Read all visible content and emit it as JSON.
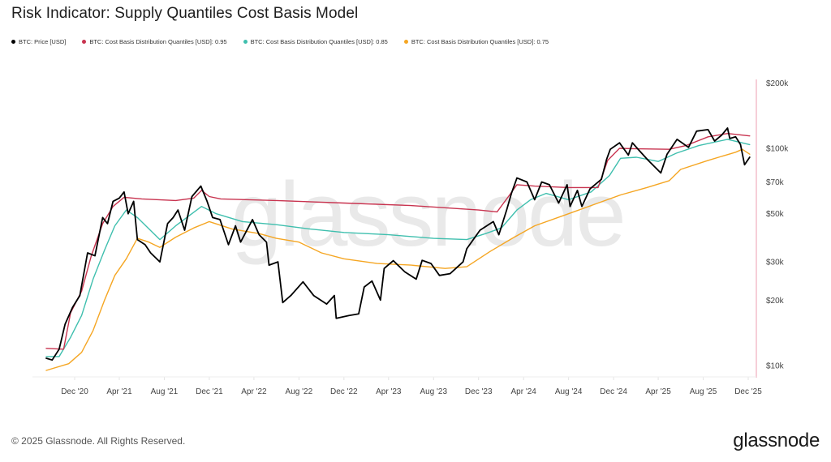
{
  "header": {
    "title": "Risk Indicator: Supply Quantiles Cost Basis Model"
  },
  "footer": {
    "copyright": "© 2025 Glassnode. All Rights Reserved.",
    "logo_text": "glassnode"
  },
  "watermark": "glassnode",
  "chart_data": {
    "type": "line",
    "title": "Risk Indicator: Supply Quantiles Cost Basis Model",
    "xlabel": "",
    "ylabel": "",
    "y_scale": "log",
    "ylim": [
      9000,
      210000
    ],
    "xlim": [
      "2020-09-15",
      "2025-12-10"
    ],
    "grid": false,
    "legend_position": "top-left",
    "y_ticks": [
      {
        "value": 10000,
        "label": "$10k"
      },
      {
        "value": 20000,
        "label": "$20k"
      },
      {
        "value": 30000,
        "label": "$30k"
      },
      {
        "value": 50000,
        "label": "$50k"
      },
      {
        "value": 70000,
        "label": "$70k"
      },
      {
        "value": 100000,
        "label": "$100k"
      },
      {
        "value": 200000,
        "label": "$200k"
      }
    ],
    "x_ticks": [
      {
        "date": "2020-12-01",
        "label": "Dec '20"
      },
      {
        "date": "2021-04-01",
        "label": "Apr '21"
      },
      {
        "date": "2021-08-01",
        "label": "Aug '21"
      },
      {
        "date": "2021-12-01",
        "label": "Dec '21"
      },
      {
        "date": "2022-04-01",
        "label": "Apr '22"
      },
      {
        "date": "2022-08-01",
        "label": "Aug '22"
      },
      {
        "date": "2022-12-01",
        "label": "Dec '22"
      },
      {
        "date": "2023-04-01",
        "label": "Apr '23"
      },
      {
        "date": "2023-08-01",
        "label": "Aug '23"
      },
      {
        "date": "2023-12-01",
        "label": "Dec '23"
      },
      {
        "date": "2024-04-01",
        "label": "Apr '24"
      },
      {
        "date": "2024-08-01",
        "label": "Aug '24"
      },
      {
        "date": "2024-12-01",
        "label": "Dec '24"
      },
      {
        "date": "2025-04-01",
        "label": "Apr '25"
      },
      {
        "date": "2025-08-01",
        "label": "Aug '25"
      },
      {
        "date": "2025-12-01",
        "label": "Dec '25"
      }
    ],
    "series": [
      {
        "name": "BTC: Price [USD]",
        "color": "#000000",
        "points": [
          [
            "2020-09-15",
            10800
          ],
          [
            "2020-10-01",
            10600
          ],
          [
            "2020-10-20",
            11900
          ],
          [
            "2020-11-05",
            15500
          ],
          [
            "2020-11-25",
            18500
          ],
          [
            "2020-12-15",
            21000
          ],
          [
            "2021-01-05",
            33000
          ],
          [
            "2021-01-25",
            32000
          ],
          [
            "2021-02-15",
            48000
          ],
          [
            "2021-02-28",
            45000
          ],
          [
            "2021-03-15",
            57000
          ],
          [
            "2021-04-01",
            59000
          ],
          [
            "2021-04-14",
            63000
          ],
          [
            "2021-04-25",
            50000
          ],
          [
            "2021-05-10",
            57000
          ],
          [
            "2021-05-20",
            38000
          ],
          [
            "2021-06-10",
            36000
          ],
          [
            "2021-06-25",
            33000
          ],
          [
            "2021-07-20",
            30000
          ],
          [
            "2021-08-10",
            45000
          ],
          [
            "2021-08-25",
            48000
          ],
          [
            "2021-09-07",
            52000
          ],
          [
            "2021-09-25",
            42000
          ],
          [
            "2021-10-15",
            60000
          ],
          [
            "2021-11-08",
            67000
          ],
          [
            "2021-11-25",
            57000
          ],
          [
            "2021-12-10",
            48000
          ],
          [
            "2021-12-30",
            47000
          ],
          [
            "2022-01-22",
            36000
          ],
          [
            "2022-02-10",
            44000
          ],
          [
            "2022-02-24",
            37000
          ],
          [
            "2022-03-28",
            47000
          ],
          [
            "2022-04-15",
            40000
          ],
          [
            "2022-05-05",
            37000
          ],
          [
            "2022-05-12",
            29000
          ],
          [
            "2022-06-05",
            30000
          ],
          [
            "2022-06-18",
            19500
          ],
          [
            "2022-07-10",
            21000
          ],
          [
            "2022-08-12",
            24300
          ],
          [
            "2022-09-10",
            21000
          ],
          [
            "2022-10-15",
            19200
          ],
          [
            "2022-11-05",
            21000
          ],
          [
            "2022-11-10",
            16500
          ],
          [
            "2022-12-15",
            17000
          ],
          [
            "2023-01-10",
            17300
          ],
          [
            "2023-01-25",
            23000
          ],
          [
            "2023-02-15",
            24500
          ],
          [
            "2023-03-10",
            20000
          ],
          [
            "2023-03-20",
            28000
          ],
          [
            "2023-04-14",
            30400
          ],
          [
            "2023-05-15",
            27000
          ],
          [
            "2023-06-15",
            25000
          ],
          [
            "2023-07-01",
            30500
          ],
          [
            "2023-07-25",
            29500
          ],
          [
            "2023-08-17",
            26000
          ],
          [
            "2023-09-15",
            26500
          ],
          [
            "2023-10-20",
            30000
          ],
          [
            "2023-10-30",
            34500
          ],
          [
            "2023-12-05",
            42000
          ],
          [
            "2024-01-10",
            46000
          ],
          [
            "2024-01-25",
            40000
          ],
          [
            "2024-02-15",
            52000
          ],
          [
            "2024-02-28",
            62000
          ],
          [
            "2024-03-14",
            73000
          ],
          [
            "2024-04-10",
            70000
          ],
          [
            "2024-05-01",
            58000
          ],
          [
            "2024-05-20",
            70000
          ],
          [
            "2024-06-10",
            68000
          ],
          [
            "2024-07-05",
            56000
          ],
          [
            "2024-07-28",
            68000
          ],
          [
            "2024-08-05",
            54000
          ],
          [
            "2024-08-25",
            64000
          ],
          [
            "2024-09-06",
            54000
          ],
          [
            "2024-09-28",
            65000
          ],
          [
            "2024-10-29",
            72000
          ],
          [
            "2024-11-12",
            89000
          ],
          [
            "2024-11-22",
            99000
          ],
          [
            "2024-12-17",
            106000
          ],
          [
            "2025-01-10",
            93000
          ],
          [
            "2025-01-21",
            106000
          ],
          [
            "2025-02-10",
            97000
          ],
          [
            "2025-03-05",
            88000
          ],
          [
            "2025-04-08",
            77000
          ],
          [
            "2025-04-25",
            94000
          ],
          [
            "2025-05-22",
            110000
          ],
          [
            "2025-06-22",
            101000
          ],
          [
            "2025-07-14",
            120000
          ],
          [
            "2025-08-14",
            122000
          ],
          [
            "2025-09-01",
            108000
          ],
          [
            "2025-09-20",
            115000
          ],
          [
            "2025-10-06",
            124000
          ],
          [
            "2025-10-12",
            111000
          ],
          [
            "2025-10-28",
            113000
          ],
          [
            "2025-11-10",
            104000
          ],
          [
            "2025-11-21",
            84000
          ],
          [
            "2025-12-05",
            91000
          ]
        ]
      },
      {
        "name": "BTC: Cost Basis Distribution Quantiles [USD]: 0.95",
        "color": "#c8334f",
        "points": [
          [
            "2020-09-15",
            12000
          ],
          [
            "2020-11-01",
            11900
          ],
          [
            "2020-11-20",
            17500
          ],
          [
            "2020-12-20",
            22000
          ],
          [
            "2021-01-15",
            32000
          ],
          [
            "2021-02-15",
            45000
          ],
          [
            "2021-03-15",
            54000
          ],
          [
            "2021-04-14",
            59500
          ],
          [
            "2021-06-01",
            58500
          ],
          [
            "2021-09-01",
            57500
          ],
          [
            "2021-10-20",
            59000
          ],
          [
            "2021-11-10",
            64000
          ],
          [
            "2021-12-01",
            60000
          ],
          [
            "2022-01-01",
            58500
          ],
          [
            "2022-06-01",
            57500
          ],
          [
            "2022-12-01",
            56000
          ],
          [
            "2023-06-01",
            54500
          ],
          [
            "2023-12-01",
            52000
          ],
          [
            "2024-01-20",
            51000
          ],
          [
            "2024-02-20",
            60000
          ],
          [
            "2024-03-14",
            68000
          ],
          [
            "2024-05-01",
            67000
          ],
          [
            "2024-08-01",
            66000
          ],
          [
            "2024-10-20",
            66000
          ],
          [
            "2024-11-15",
            88000
          ],
          [
            "2024-12-17",
            100000
          ],
          [
            "2025-02-01",
            99500
          ],
          [
            "2025-05-01",
            99000
          ],
          [
            "2025-06-15",
            103000
          ],
          [
            "2025-08-14",
            113000
          ],
          [
            "2025-10-06",
            117000
          ],
          [
            "2025-12-05",
            114000
          ]
        ]
      },
      {
        "name": "BTC: Cost Basis Distribution Quantiles [USD]: 0.85",
        "color": "#3fbfae",
        "points": [
          [
            "2020-09-15",
            11000
          ],
          [
            "2020-10-20",
            11000
          ],
          [
            "2020-11-20",
            13500
          ],
          [
            "2020-12-20",
            17000
          ],
          [
            "2021-01-20",
            25000
          ],
          [
            "2021-02-20",
            34000
          ],
          [
            "2021-03-20",
            44000
          ],
          [
            "2021-04-20",
            52000
          ],
          [
            "2021-05-20",
            48000
          ],
          [
            "2021-07-20",
            38000
          ],
          [
            "2021-09-01",
            44000
          ],
          [
            "2021-11-10",
            54000
          ],
          [
            "2021-12-20",
            50000
          ],
          [
            "2022-03-01",
            46000
          ],
          [
            "2022-06-01",
            44500
          ],
          [
            "2022-09-01",
            42500
          ],
          [
            "2022-12-01",
            41000
          ],
          [
            "2023-04-01",
            40000
          ],
          [
            "2023-08-01",
            38500
          ],
          [
            "2023-10-30",
            38000
          ],
          [
            "2023-12-20",
            40500
          ],
          [
            "2024-02-01",
            43000
          ],
          [
            "2024-03-14",
            52000
          ],
          [
            "2024-04-20",
            58000
          ],
          [
            "2024-06-01",
            62000
          ],
          [
            "2024-08-01",
            58000
          ],
          [
            "2024-10-01",
            63000
          ],
          [
            "2024-11-20",
            75000
          ],
          [
            "2024-12-20",
            90000
          ],
          [
            "2025-02-01",
            91000
          ],
          [
            "2025-04-01",
            87000
          ],
          [
            "2025-05-20",
            95000
          ],
          [
            "2025-07-20",
            103000
          ],
          [
            "2025-10-06",
            110000
          ],
          [
            "2025-12-05",
            104000
          ]
        ]
      },
      {
        "name": "BTC: Cost Basis Distribution Quantiles [USD]: 0.75",
        "color": "#f5a623",
        "points": [
          [
            "2020-09-15",
            9500
          ],
          [
            "2020-11-15",
            10200
          ],
          [
            "2020-12-20",
            11500
          ],
          [
            "2021-01-20",
            14500
          ],
          [
            "2021-02-20",
            20000
          ],
          [
            "2021-03-20",
            26000
          ],
          [
            "2021-04-20",
            31000
          ],
          [
            "2021-05-20",
            38500
          ],
          [
            "2021-06-20",
            37000
          ],
          [
            "2021-07-20",
            35000
          ],
          [
            "2021-09-01",
            39000
          ],
          [
            "2021-10-20",
            43000
          ],
          [
            "2021-12-01",
            46000
          ],
          [
            "2022-02-01",
            42500
          ],
          [
            "2022-04-15",
            40500
          ],
          [
            "2022-06-01",
            38500
          ],
          [
            "2022-08-01",
            37000
          ],
          [
            "2022-10-01",
            33000
          ],
          [
            "2022-12-01",
            31000
          ],
          [
            "2023-03-01",
            29500
          ],
          [
            "2023-06-01",
            29000
          ],
          [
            "2023-09-01",
            28000
          ],
          [
            "2023-10-30",
            28500
          ],
          [
            "2024-01-01",
            33500
          ],
          [
            "2024-03-01",
            38500
          ],
          [
            "2024-05-01",
            44000
          ],
          [
            "2024-08-01",
            50000
          ],
          [
            "2024-10-20",
            56000
          ],
          [
            "2024-12-20",
            61000
          ],
          [
            "2025-03-01",
            66000
          ],
          [
            "2025-05-01",
            71000
          ],
          [
            "2025-06-01",
            80000
          ],
          [
            "2025-08-14",
            88000
          ],
          [
            "2025-10-28",
            96000
          ],
          [
            "2025-11-15",
            99000
          ],
          [
            "2025-12-05",
            94000
          ]
        ]
      }
    ]
  }
}
